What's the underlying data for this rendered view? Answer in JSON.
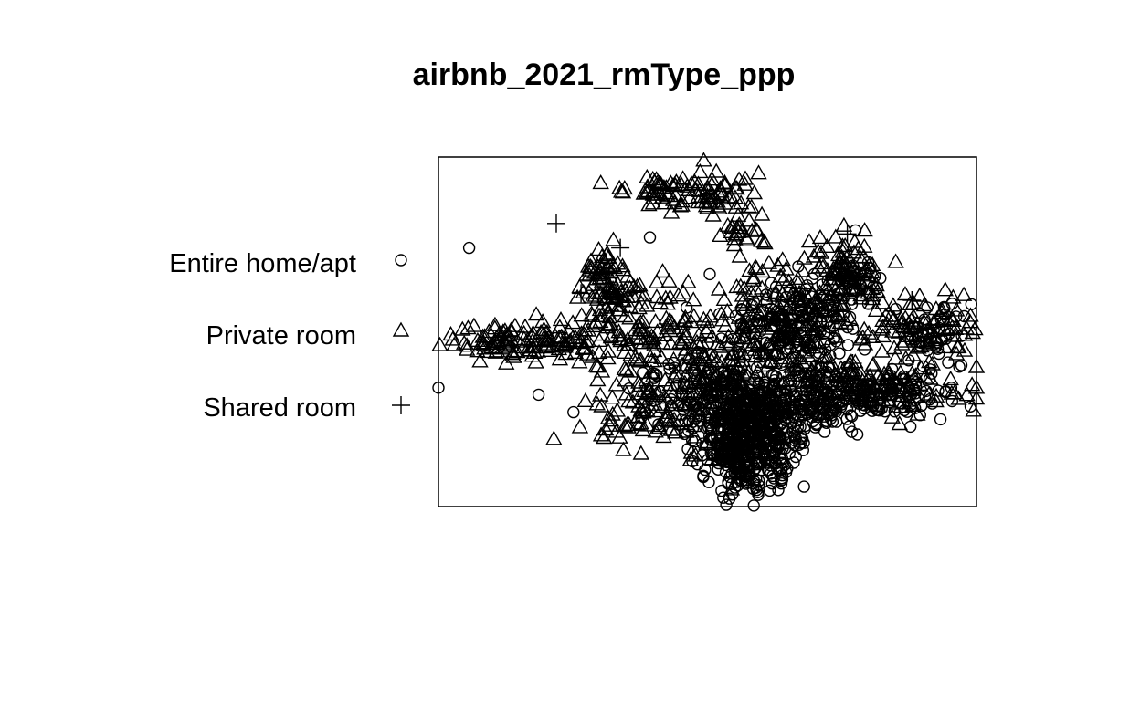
{
  "chart_data": {
    "type": "scatter",
    "title": "airbnb_2021_rmType_ppp",
    "xlabel": "",
    "ylabel": "",
    "axes_shown": false,
    "grid": false,
    "frame": true,
    "legend_position": "left",
    "marker_color": "#000000",
    "xlim": [
      0,
      100
    ],
    "ylim": [
      0,
      100
    ],
    "series": [
      {
        "name": "Entire home/apt",
        "marker": "circle",
        "clusters": [
          {
            "x": 58,
            "y": 20,
            "spread": [
              4.5,
              7
            ],
            "n": 500
          },
          {
            "x": 68,
            "y": 30,
            "spread": [
              8,
              4
            ],
            "n": 230
          },
          {
            "x": 50,
            "y": 32,
            "spread": [
              6,
              6
            ],
            "n": 140
          },
          {
            "x": 65,
            "y": 52,
            "spread": [
              6,
              7
            ],
            "n": 160
          },
          {
            "x": 84,
            "y": 34,
            "spread": [
              7,
              4
            ],
            "n": 80
          },
          {
            "x": 78,
            "y": 66,
            "spread": [
              3,
              3
            ],
            "n": 30
          },
          {
            "x": 93,
            "y": 50,
            "spread": [
              3,
              4
            ],
            "n": 40
          },
          {
            "x": 57,
            "y": 10,
            "spread": [
              2,
              3
            ],
            "n": 25
          }
        ],
        "points": [
          {
            "x": 5.7,
            "y": 74
          },
          {
            "x": 0,
            "y": 34
          },
          {
            "x": 18.6,
            "y": 32
          },
          {
            "x": 25.1,
            "y": 27
          },
          {
            "x": 39.3,
            "y": 77
          },
          {
            "x": 53.5,
            "y": 0.5
          },
          {
            "x": 58.6,
            "y": 0.3
          },
          {
            "x": 54.1,
            "y": 2.3
          },
          {
            "x": 77.5,
            "y": 79
          }
        ]
      },
      {
        "name": "Private room",
        "marker": "triangle",
        "clusters": [
          {
            "x": 44,
            "y": 91,
            "spread": [
              4.5,
              2.5
            ],
            "n": 60
          },
          {
            "x": 53,
            "y": 90,
            "spread": [
              2.5,
              2.5
            ],
            "n": 35
          },
          {
            "x": 56,
            "y": 79,
            "spread": [
              2.5,
              2.5
            ],
            "n": 25
          },
          {
            "x": 30,
            "y": 68,
            "spread": [
              2,
              3
            ],
            "n": 40
          },
          {
            "x": 34,
            "y": 61,
            "spread": [
              4,
              2.5
            ],
            "n": 45
          },
          {
            "x": 16,
            "y": 47,
            "spread": [
              7,
              2.5
            ],
            "n": 110
          },
          {
            "x": 36,
            "y": 50,
            "spread": [
              7,
              6
            ],
            "n": 120
          },
          {
            "x": 52,
            "y": 38,
            "spread": [
              8,
              6
            ],
            "n": 140
          },
          {
            "x": 65,
            "y": 54,
            "spread": [
              7,
              9
            ],
            "n": 200
          },
          {
            "x": 76,
            "y": 67,
            "spread": [
              3.5,
              5
            ],
            "n": 70
          },
          {
            "x": 89,
            "y": 51,
            "spread": [
              6,
              5
            ],
            "n": 90
          },
          {
            "x": 81,
            "y": 35,
            "spread": [
              8,
              4
            ],
            "n": 120
          },
          {
            "x": 41,
            "y": 26,
            "spread": [
              8,
              5
            ],
            "n": 100
          },
          {
            "x": 55,
            "y": 14,
            "spread": [
              3,
              3
            ],
            "n": 30
          }
        ],
        "points": [
          {
            "x": 49.3,
            "y": 99
          },
          {
            "x": 10.5,
            "y": 51
          },
          {
            "x": 100,
            "y": 34
          },
          {
            "x": 54.5,
            "y": 5
          },
          {
            "x": 42,
            "y": 49
          },
          {
            "x": 50,
            "y": 51
          },
          {
            "x": 85,
            "y": 70
          },
          {
            "x": 68,
            "y": 71
          },
          {
            "x": 60,
            "y": 76
          }
        ]
      },
      {
        "name": "Shared room",
        "marker": "plus",
        "clusters": [],
        "points": [
          {
            "x": 21.9,
            "y": 81
          },
          {
            "x": 33.8,
            "y": 74
          },
          {
            "x": 76,
            "y": 78
          },
          {
            "x": 77,
            "y": 41
          },
          {
            "x": 26.5,
            "y": 61
          },
          {
            "x": 88,
            "y": 59
          },
          {
            "x": 60,
            "y": 45
          },
          {
            "x": 70,
            "y": 39
          },
          {
            "x": 52,
            "y": 30
          }
        ]
      }
    ]
  }
}
